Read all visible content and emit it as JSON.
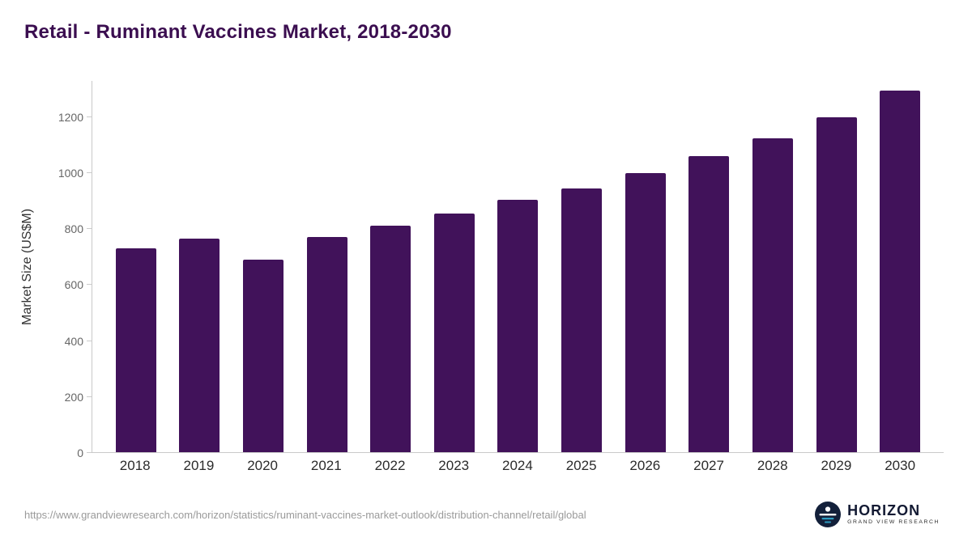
{
  "header": {
    "title": "Retail - Ruminant Vaccines Market, 2018-2030"
  },
  "chart_data": {
    "type": "bar",
    "title": "Retail - Ruminant Vaccines Market, 2018-2030",
    "categories": [
      "2018",
      "2019",
      "2020",
      "2021",
      "2022",
      "2023",
      "2024",
      "2025",
      "2026",
      "2027",
      "2028",
      "2029",
      "2030"
    ],
    "values": [
      730,
      765,
      690,
      770,
      810,
      855,
      905,
      945,
      1000,
      1060,
      1125,
      1200,
      1295
    ],
    "xlabel": "",
    "ylabel": "Market Size (US$M)",
    "ylim": [
      0,
      1330
    ],
    "yticks": [
      0,
      200,
      400,
      600,
      800,
      1000,
      1200
    ],
    "grid": false,
    "legend_position": "none",
    "bar_color": "#41125a",
    "axis_color": "#c9c9c9"
  },
  "footer": {
    "source_url": "https://www.grandviewresearch.com/horizon/statistics/ruminant-vaccines-market-outlook/distribution-channel/retail/global",
    "logo": {
      "name": "HORIZON",
      "subtitle": "GRAND VIEW RESEARCH",
      "icon": "horizon-sun-icon",
      "icon_colors": {
        "circle": "#13203a",
        "sun": "#ffffff",
        "stripes": "#ffffff"
      }
    }
  }
}
